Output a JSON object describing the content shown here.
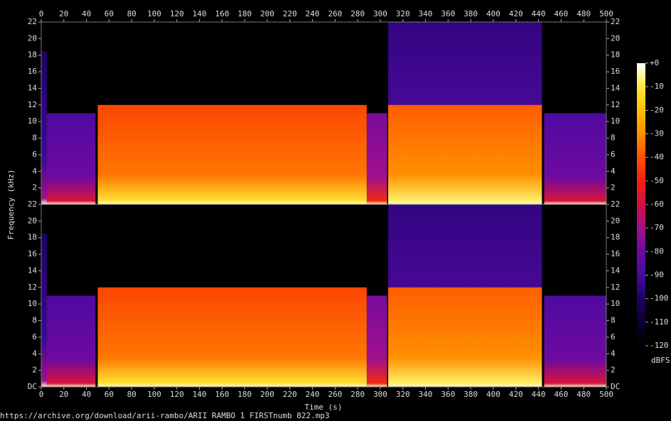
{
  "chart_data": {
    "type": "spectrogram",
    "xlabel": "Time (s)",
    "ylabel": "Frequency (kHz)",
    "xlim": [
      0,
      500
    ],
    "xticks": [
      0,
      20,
      40,
      60,
      80,
      100,
      120,
      140,
      160,
      180,
      200,
      220,
      240,
      260,
      280,
      300,
      320,
      340,
      360,
      380,
      400,
      420,
      440,
      460,
      480,
      500
    ],
    "panels": [
      {
        "ylim": [
          0,
          22
        ],
        "yticks": [
          2,
          4,
          6,
          8,
          10,
          12,
          14,
          16,
          18,
          20,
          22
        ],
        "segments": [
          {
            "start": 0,
            "end": 5,
            "cutoff": 18.5,
            "level": -100
          },
          {
            "start": 5,
            "end": 48,
            "cutoff": 11,
            "level": -88
          },
          {
            "start": 50,
            "end": 288,
            "cutoff": 12,
            "level": -42
          },
          {
            "start": 288,
            "end": 306,
            "cutoff": 11,
            "level": -78
          },
          {
            "start": 307,
            "end": 443,
            "cutoff": 22,
            "level": -95
          },
          {
            "start": 307,
            "end": 443,
            "cutoff": 12,
            "level": -38
          },
          {
            "start": 445,
            "end": 500,
            "cutoff": 11,
            "level": -88
          }
        ]
      },
      {
        "ylim": [
          0,
          22
        ],
        "yticks": [
          {
            "value": 0,
            "label": "DC"
          },
          2,
          4,
          6,
          8,
          10,
          12,
          14,
          16,
          18,
          20,
          22
        ],
        "segments": [
          {
            "start": 0,
            "end": 5,
            "cutoff": 18.5,
            "level": -100
          },
          {
            "start": 5,
            "end": 48,
            "cutoff": 11,
            "level": -88
          },
          {
            "start": 50,
            "end": 288,
            "cutoff": 12,
            "level": -42
          },
          {
            "start": 288,
            "end": 306,
            "cutoff": 11,
            "level": -78
          },
          {
            "start": 307,
            "end": 443,
            "cutoff": 22,
            "level": -95
          },
          {
            "start": 307,
            "end": 443,
            "cutoff": 12,
            "level": -38
          },
          {
            "start": 445,
            "end": 500,
            "cutoff": 11,
            "level": -88
          }
        ]
      }
    ],
    "colorbar": {
      "label": "dBFS",
      "lim": [
        -120,
        0
      ],
      "ticks": [
        {
          "value": 0,
          "label": "+0"
        },
        -10,
        -20,
        -30,
        -40,
        -50,
        -60,
        -70,
        -80,
        -90,
        -100,
        -110,
        -120
      ]
    }
  },
  "footer": "https://archive.org/download/arii-rambo/ARII RAMBO 1 FIRSTnumb 822.mp3"
}
